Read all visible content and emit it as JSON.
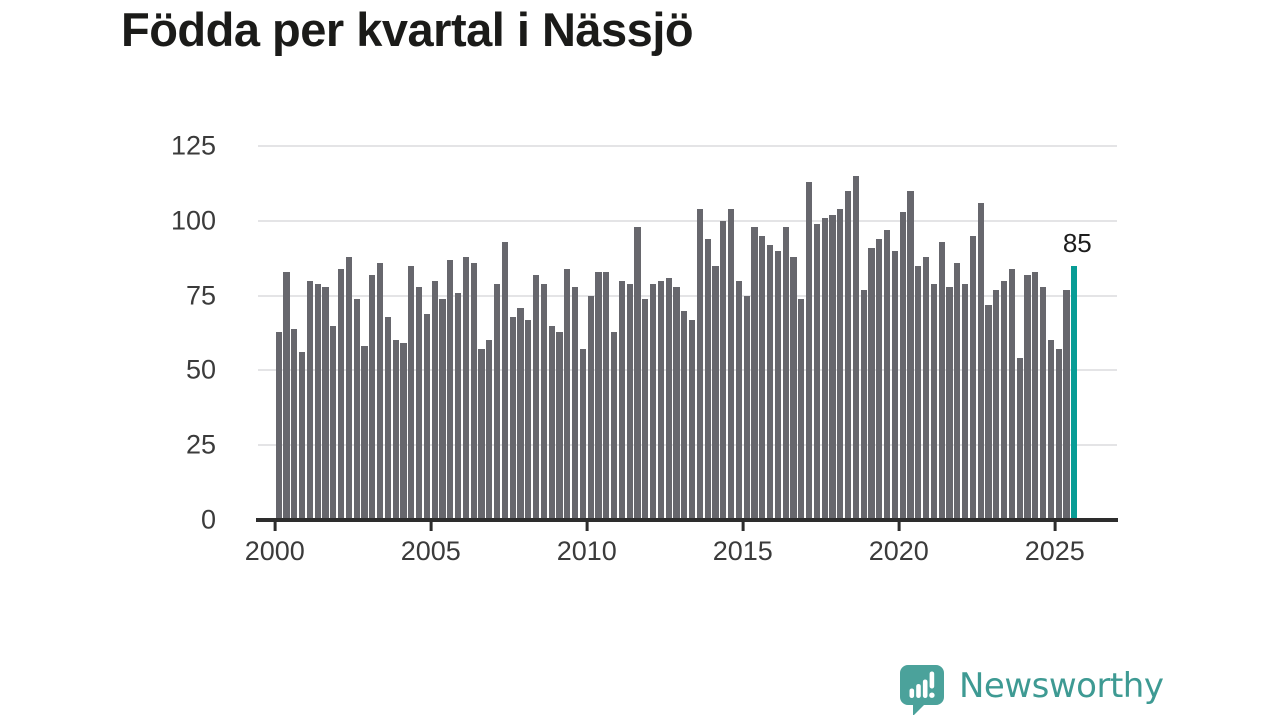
{
  "chart_data": {
    "type": "bar",
    "title": "Födda per kvartal i Nässjö",
    "xlabel": "",
    "ylabel": "",
    "x_start": "2000 Q1",
    "x_end": "2025 Q3",
    "x_frequency": "quarterly",
    "values": [
      63,
      83,
      64,
      56,
      80,
      79,
      78,
      65,
      84,
      88,
      74,
      58,
      82,
      86,
      68,
      60,
      59,
      85,
      78,
      69,
      80,
      74,
      87,
      76,
      88,
      86,
      57,
      60,
      79,
      93,
      68,
      71,
      67,
      82,
      79,
      65,
      63,
      84,
      78,
      57,
      75,
      83,
      83,
      63,
      80,
      79,
      98,
      74,
      79,
      80,
      81,
      78,
      70,
      67,
      104,
      94,
      85,
      100,
      104,
      80,
      75,
      98,
      95,
      92,
      90,
      98,
      88,
      74,
      113,
      99,
      101,
      102,
      104,
      110,
      115,
      77,
      91,
      94,
      97,
      90,
      103,
      110,
      85,
      88,
      79,
      93,
      78,
      86,
      79,
      95,
      106,
      72,
      77,
      80,
      84,
      54,
      82,
      83,
      78,
      60,
      57,
      77,
      85
    ],
    "highlight": {
      "index": 102,
      "quarter": "2025 Q3",
      "value": 85,
      "label": "85",
      "color": "#089c95"
    },
    "bar_color": "#67676d",
    "ylim": [
      0,
      125
    ],
    "y_ticks": [
      0,
      25,
      50,
      75,
      100,
      125
    ],
    "y_tick_labels": [
      "0",
      "25",
      "50",
      "75",
      "100",
      "125"
    ],
    "x_ticks": [
      2000,
      2005,
      2010,
      2015,
      2020,
      2025
    ],
    "x_tick_labels": [
      "2000",
      "2005",
      "2010",
      "2015",
      "2020",
      "2025"
    ],
    "grid": true,
    "legend": false
  },
  "branding": {
    "name": "Newsworthy",
    "wordmark_color": "#3e9a93",
    "icon": "newsworthy-speech-bubble-chart-icon",
    "icon_color": "#4ba29b"
  }
}
